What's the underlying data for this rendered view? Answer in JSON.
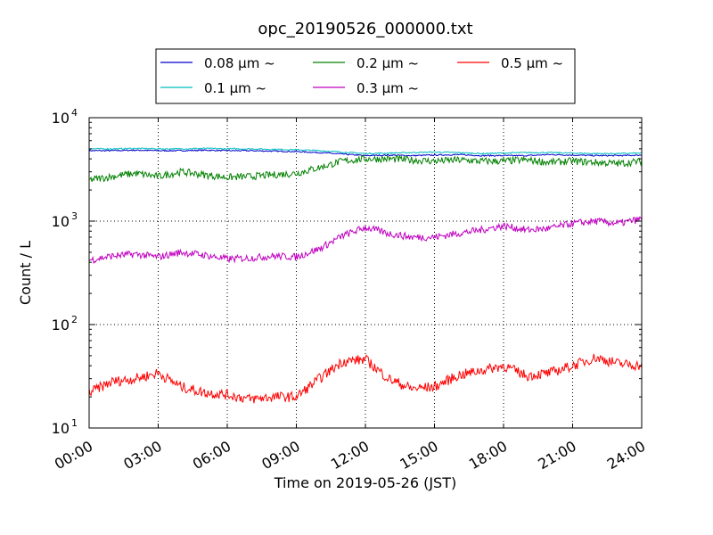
{
  "chart_data": {
    "type": "line",
    "title": "opc_20190526_000000.txt",
    "xlabel": "Time on 2019-05-26 (JST)",
    "ylabel": "Count / L",
    "y_scale": "log",
    "ylim": [
      10,
      10000
    ],
    "xlim": [
      "00:00",
      "24:00"
    ],
    "grid": true,
    "legend_position": "top",
    "x_ticks": [
      "00:00",
      "03:00",
      "06:00",
      "09:00",
      "12:00",
      "15:00",
      "18:00",
      "21:00",
      "24:00"
    ],
    "y_ticks": [
      {
        "value": 10,
        "base": "10",
        "exp": "1"
      },
      {
        "value": 100,
        "base": "10",
        "exp": "2"
      },
      {
        "value": 1000,
        "base": "10",
        "exp": "3"
      },
      {
        "value": 10000,
        "base": "10",
        "exp": "4"
      }
    ],
    "series": [
      {
        "name": "0.08 μm ~",
        "color": "#0000cc",
        "x": [
          "00:00",
          "01:00",
          "02:00",
          "03:00",
          "04:00",
          "05:00",
          "06:00",
          "07:00",
          "08:00",
          "09:00",
          "10:00",
          "11:00",
          "12:00",
          "13:00",
          "14:00",
          "15:00",
          "16:00",
          "17:00",
          "18:00",
          "19:00",
          "20:00",
          "21:00",
          "22:00",
          "23:00",
          "24:00"
        ],
        "values": [
          4800,
          4800,
          4850,
          4800,
          4800,
          4850,
          4800,
          4800,
          4750,
          4700,
          4600,
          4450,
          4300,
          4350,
          4300,
          4350,
          4400,
          4300,
          4300,
          4300,
          4400,
          4350,
          4300,
          4300,
          4350
        ]
      },
      {
        "name": "0.1 μm ~",
        "color": "#00bfbf",
        "x": [
          "00:00",
          "01:00",
          "02:00",
          "03:00",
          "04:00",
          "05:00",
          "06:00",
          "07:00",
          "08:00",
          "09:00",
          "10:00",
          "11:00",
          "12:00",
          "13:00",
          "14:00",
          "15:00",
          "16:00",
          "17:00",
          "18:00",
          "19:00",
          "20:00",
          "21:00",
          "22:00",
          "23:00",
          "24:00"
        ],
        "values": [
          5000,
          5000,
          5050,
          5000,
          5000,
          5050,
          5000,
          5000,
          4950,
          4900,
          4800,
          4650,
          4500,
          4550,
          4600,
          4650,
          4600,
          4500,
          4550,
          4600,
          4600,
          4550,
          4500,
          4500,
          4550
        ]
      },
      {
        "name": "0.2 μm ~",
        "color": "#008000",
        "x": [
          "00:00",
          "01:00",
          "02:00",
          "03:00",
          "04:00",
          "05:00",
          "06:00",
          "07:00",
          "08:00",
          "09:00",
          "10:00",
          "11:00",
          "12:00",
          "13:00",
          "14:00",
          "15:00",
          "16:00",
          "17:00",
          "18:00",
          "19:00",
          "20:00",
          "21:00",
          "22:00",
          "23:00",
          "24:00"
        ],
        "values": [
          2500,
          2700,
          2900,
          2700,
          3000,
          2800,
          2650,
          2700,
          2800,
          2900,
          3300,
          3800,
          4000,
          4000,
          3900,
          3800,
          3900,
          3800,
          3800,
          3900,
          3700,
          3800,
          3700,
          3600,
          3800
        ]
      },
      {
        "name": "0.3 μm ~",
        "color": "#bf00bf",
        "x": [
          "00:00",
          "01:00",
          "02:00",
          "03:00",
          "04:00",
          "05:00",
          "06:00",
          "07:00",
          "08:00",
          "09:00",
          "10:00",
          "11:00",
          "12:00",
          "13:00",
          "14:00",
          "15:00",
          "16:00",
          "17:00",
          "18:00",
          "19:00",
          "20:00",
          "21:00",
          "22:00",
          "23:00",
          "24:00"
        ],
        "values": [
          420,
          460,
          480,
          450,
          500,
          470,
          430,
          440,
          460,
          450,
          540,
          720,
          870,
          760,
          700,
          700,
          760,
          820,
          900,
          820,
          850,
          950,
          1000,
          950,
          1050
        ]
      },
      {
        "name": "0.5 μm ~",
        "color": "#ff0000",
        "x": [
          "00:00",
          "01:00",
          "02:00",
          "03:00",
          "04:00",
          "05:00",
          "06:00",
          "07:00",
          "08:00",
          "09:00",
          "10:00",
          "11:00",
          "12:00",
          "13:00",
          "14:00",
          "15:00",
          "16:00",
          "17:00",
          "18:00",
          "19:00",
          "20:00",
          "21:00",
          "22:00",
          "23:00",
          "24:00"
        ],
        "values": [
          22,
          28,
          30,
          34,
          25,
          22,
          21,
          19,
          20,
          20,
          30,
          44,
          46,
          30,
          24,
          25,
          32,
          36,
          40,
          32,
          34,
          40,
          48,
          42,
          40
        ]
      }
    ]
  }
}
